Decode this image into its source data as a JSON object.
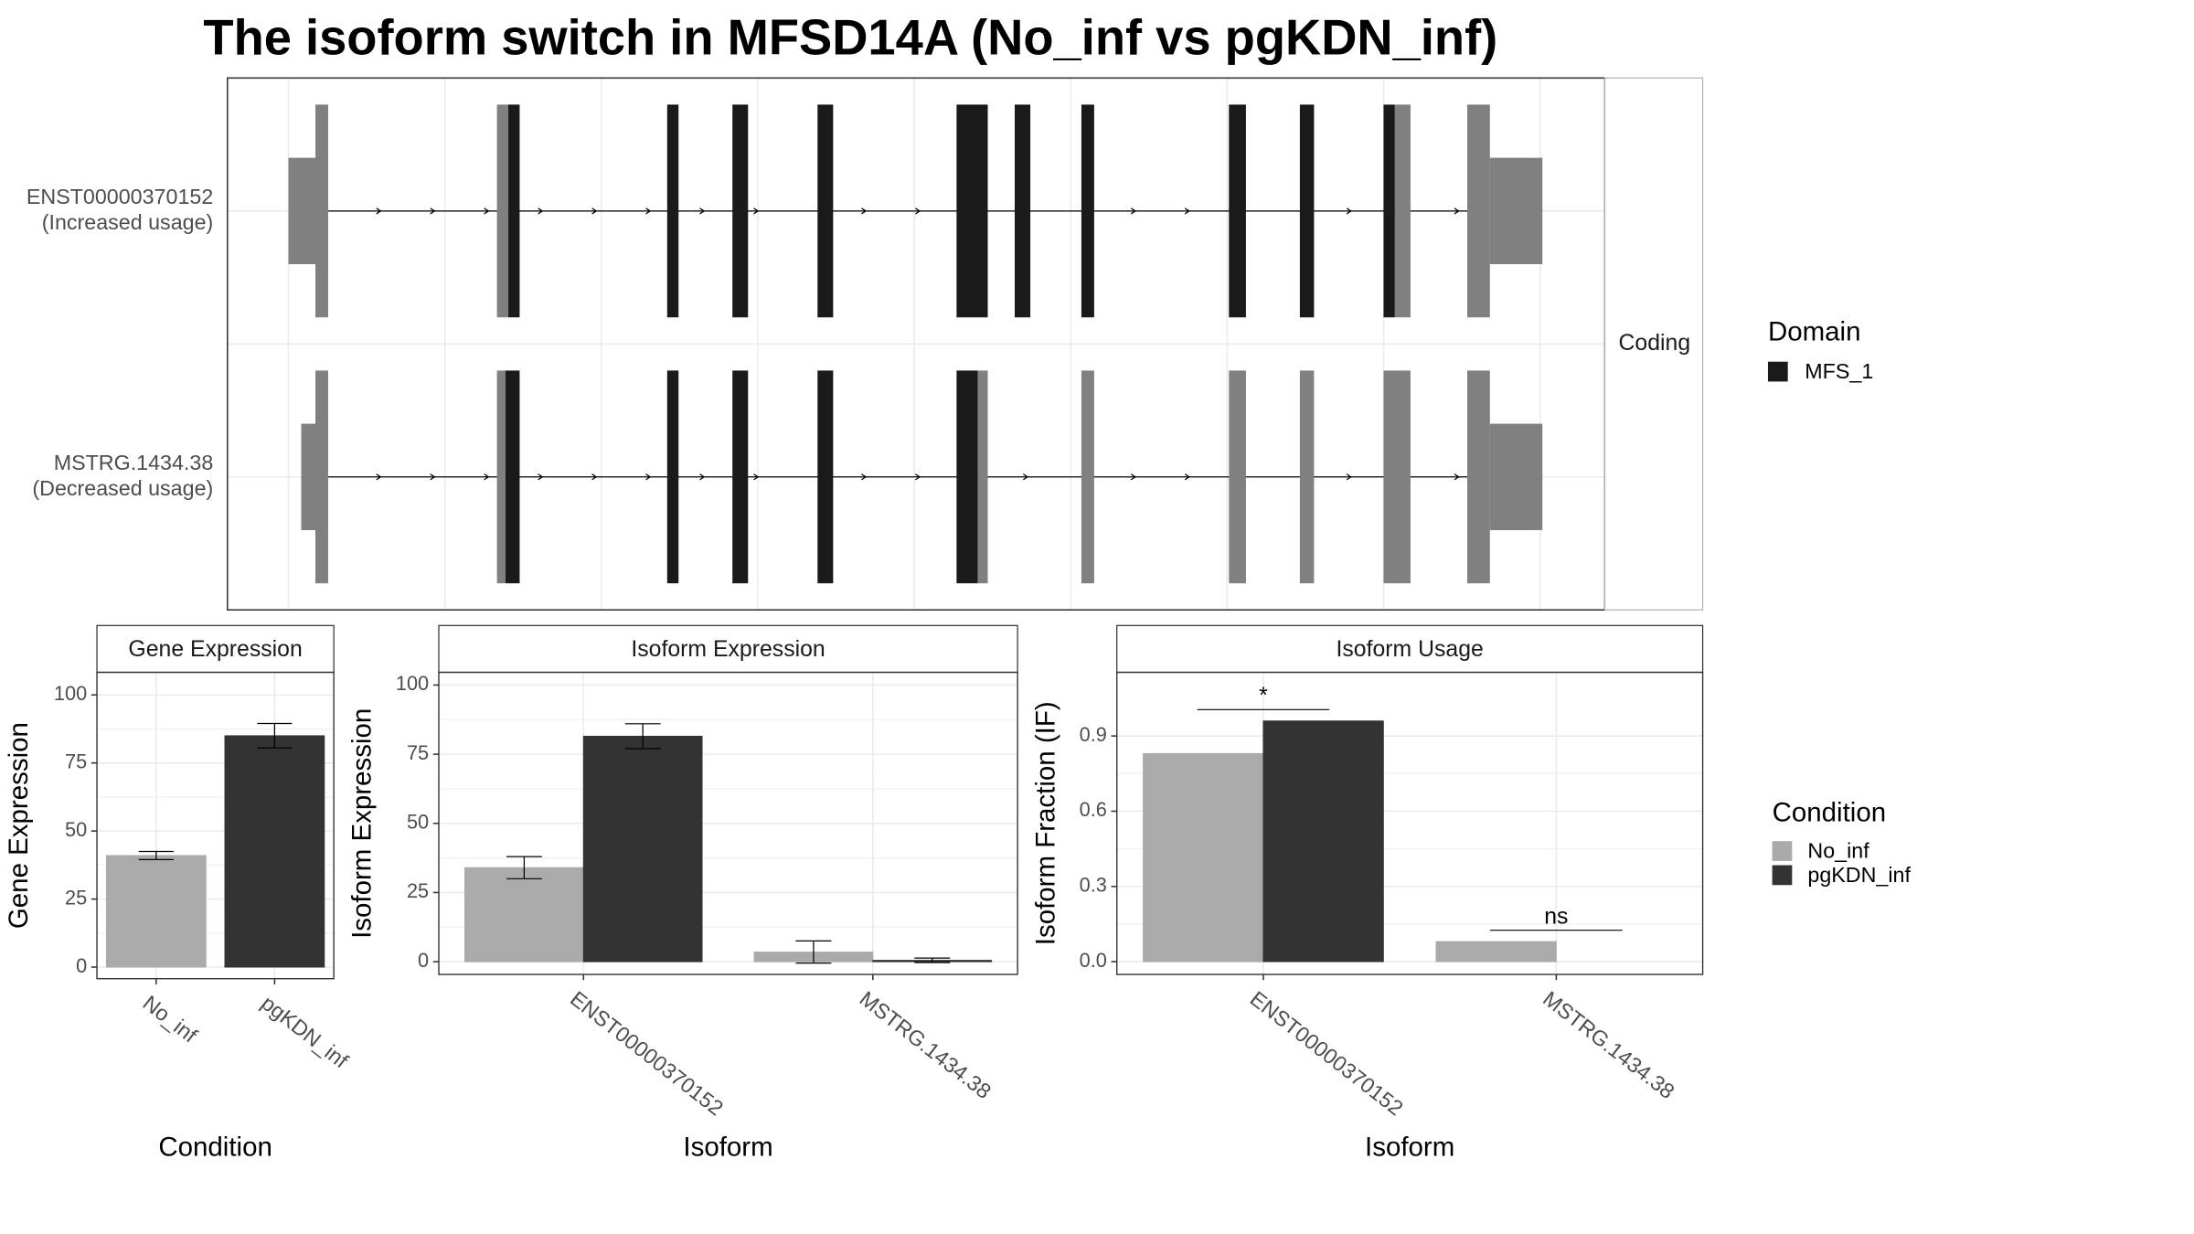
{
  "chart_data": [
    {
      "type": "transcript",
      "title": "The isoform switch in MFSD14A (No_inf vs pgKDN_inf)",
      "xlim": [
        0,
        971
      ],
      "facet": "Coding",
      "legend_title": "Domain",
      "legend_entry": "MFS_1",
      "colors": {
        "utr": "#808080",
        "cds": "#808080",
        "domain": "#1a1a1a"
      },
      "transcripts": [
        {
          "name": "ENST00000370152",
          "usage": "(Increased usage)",
          "exons": [
            {
              "start": 43,
              "end": 62,
              "part": "utr"
            },
            {
              "start": 62,
              "end": 71,
              "part": "cds"
            },
            {
              "start": 190,
              "end": 198,
              "part": "cds"
            },
            {
              "start": 198,
              "end": 206,
              "part": "domain"
            },
            {
              "start": 310,
              "end": 318,
              "part": "domain"
            },
            {
              "start": 356,
              "end": 367,
              "part": "domain"
            },
            {
              "start": 416,
              "end": 427,
              "part": "domain"
            },
            {
              "start": 514,
              "end": 536,
              "part": "domain"
            },
            {
              "start": 555,
              "end": 566,
              "part": "domain"
            },
            {
              "start": 602,
              "end": 611,
              "part": "domain"
            },
            {
              "start": 706,
              "end": 718,
              "part": "domain"
            },
            {
              "start": 756,
              "end": 766,
              "part": "domain"
            },
            {
              "start": 815,
              "end": 823,
              "part": "domain"
            },
            {
              "start": 823,
              "end": 834,
              "part": "cds"
            },
            {
              "start": 874,
              "end": 890,
              "part": "cds"
            },
            {
              "start": 890,
              "end": 927,
              "part": "utr"
            }
          ]
        },
        {
          "name": "MSTRG.1434.38",
          "usage": "(Decreased usage)",
          "exons": [
            {
              "start": 52,
              "end": 62,
              "part": "utr"
            },
            {
              "start": 62,
              "end": 71,
              "part": "cds"
            },
            {
              "start": 190,
              "end": 196,
              "part": "cds"
            },
            {
              "start": 196,
              "end": 206,
              "part": "domain"
            },
            {
              "start": 310,
              "end": 318,
              "part": "domain"
            },
            {
              "start": 356,
              "end": 367,
              "part": "domain"
            },
            {
              "start": 416,
              "end": 427,
              "part": "domain"
            },
            {
              "start": 514,
              "end": 529,
              "part": "domain"
            },
            {
              "start": 529,
              "end": 536,
              "part": "cds"
            },
            {
              "start": 602,
              "end": 611,
              "part": "cds"
            },
            {
              "start": 706,
              "end": 718,
              "part": "cds"
            },
            {
              "start": 756,
              "end": 766,
              "part": "cds"
            },
            {
              "start": 815,
              "end": 834,
              "part": "cds"
            },
            {
              "start": 874,
              "end": 890,
              "part": "cds"
            },
            {
              "start": 890,
              "end": 927,
              "part": "utr"
            }
          ]
        }
      ]
    },
    {
      "type": "bar",
      "title": "Gene Expression",
      "x_label": "Condition",
      "y_label": "Gene Expression",
      "categories": [
        "No_inf",
        "pgKDN_inf"
      ],
      "values": [
        41,
        85
      ],
      "errors": [
        1.5,
        4.5
      ],
      "colors": [
        "#aaaaaa",
        "#333333"
      ],
      "ylim": [
        -4.25,
        108.3
      ],
      "yticks": [
        0,
        25,
        50,
        75,
        100
      ],
      "grid": true
    },
    {
      "type": "grouped-bar",
      "title": "Isoform Expression",
      "x_label": "Isoform",
      "y_label": "Isoform Expression",
      "categories": [
        "ENST00000370152",
        "MSTRG.1434.38"
      ],
      "series": [
        {
          "name": "No_inf",
          "color": "#aaaaaa",
          "values": [
            34,
            3.5
          ],
          "errors": [
            4,
            4
          ]
        },
        {
          "name": "pgKDN_inf",
          "color": "#333333",
          "values": [
            81.5,
            0.5
          ],
          "errors": [
            4.5,
            0.8
          ]
        }
      ],
      "ylim": [
        -4.6,
        104.6
      ],
      "yticks": [
        0,
        25,
        50,
        75,
        100
      ],
      "grid": true,
      "legend_title": "Condition"
    },
    {
      "type": "grouped-bar",
      "title": "Isoform Usage",
      "x_label": "Isoform",
      "y_label": "Isoform Fraction (IF)",
      "categories": [
        "ENST00000370152",
        "MSTRG.1434.38"
      ],
      "series": [
        {
          "name": "No_inf",
          "color": "#aaaaaa",
          "values": [
            0.83,
            0.08
          ]
        },
        {
          "name": "pgKDN_inf",
          "color": "#333333",
          "values": [
            0.96,
            0
          ]
        }
      ],
      "significance": [
        "*",
        "ns"
      ],
      "ylim": [
        -0.051,
        1.154
      ],
      "yticks": [
        {
          "value": 0,
          "label": "0.0"
        },
        0.3,
        0.6,
        0.9
      ],
      "grid": true
    }
  ]
}
